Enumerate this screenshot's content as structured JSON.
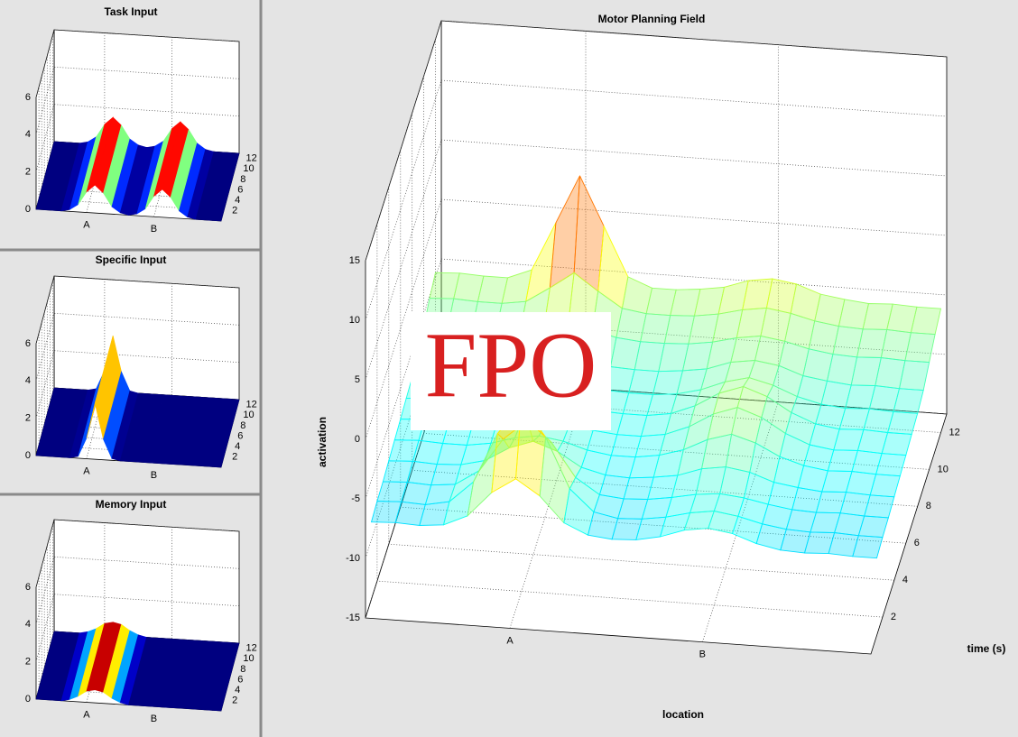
{
  "chart_data": [
    {
      "type": "surface",
      "title": "Task Input",
      "x": [
        0,
        0.5,
        1,
        1.5,
        2,
        2.5,
        3,
        3.5,
        4,
        4.5,
        5,
        5.5,
        6,
        6.5,
        7,
        7.5,
        8,
        8.5,
        9,
        9.5,
        10,
        10.5,
        11
      ],
      "values": [
        0,
        0,
        0,
        0,
        0.1,
        0.4,
        1.1,
        1.5,
        1.1,
        0.4,
        0.1,
        0,
        0.1,
        0.4,
        1.1,
        1.5,
        1.1,
        0.4,
        0.1,
        0,
        0,
        0,
        0
      ],
      "xlim": [
        0,
        11
      ],
      "xticks": [
        {
          "value": 3,
          "label": "A"
        },
        {
          "value": 7,
          "label": "B"
        }
      ],
      "ylim": [
        0,
        13
      ],
      "yticks": [
        2,
        4,
        6,
        8,
        10,
        12
      ],
      "zlim": [
        0,
        6
      ],
      "zticks": [
        0,
        2,
        4,
        6
      ],
      "grid": true
    },
    {
      "type": "surface",
      "title": "Specific Input",
      "x": [
        0,
        0.5,
        1,
        1.5,
        2,
        2.5,
        3,
        3.5,
        4,
        4.5,
        5,
        5.5,
        6,
        6.5,
        7,
        7.5,
        8,
        8.5,
        9,
        9.5,
        10,
        10.5,
        11
      ],
      "values": [
        0,
        0,
        0,
        0,
        0,
        0.1,
        1.1,
        3,
        1.1,
        0.1,
        0,
        0,
        0,
        0,
        0,
        0,
        0,
        0,
        0,
        0,
        0,
        0,
        0
      ],
      "xlim": [
        0,
        11
      ],
      "xticks": [
        {
          "value": 3,
          "label": "A"
        },
        {
          "value": 7,
          "label": "B"
        }
      ],
      "ylim": [
        0,
        13
      ],
      "yticks": [
        2,
        4,
        6,
        8,
        10,
        12
      ],
      "zlim": [
        0,
        6
      ],
      "zticks": [
        0,
        2,
        4,
        6
      ],
      "grid": true
    },
    {
      "type": "surface",
      "title": "Memory Input",
      "x": [
        0,
        0.5,
        1,
        1.5,
        2,
        2.5,
        3,
        3.5,
        4,
        4.5,
        5,
        5.5,
        6,
        6.5,
        7,
        7.5,
        8,
        8.5,
        9,
        9.5,
        10,
        10.5,
        11
      ],
      "values": [
        0,
        0,
        0,
        0,
        0.1,
        0.3,
        0.6,
        0.7,
        0.6,
        0.3,
        0.1,
        0,
        0,
        0,
        0,
        0,
        0,
        0,
        0,
        0,
        0,
        0,
        0
      ],
      "xlim": [
        0,
        11
      ],
      "xticks": [
        {
          "value": 3,
          "label": "A"
        },
        {
          "value": 7,
          "label": "B"
        }
      ],
      "ylim": [
        0,
        13
      ],
      "yticks": [
        2,
        4,
        6,
        8,
        10,
        12
      ],
      "zlim": [
        0,
        6
      ],
      "zticks": [
        0,
        2,
        4,
        6
      ],
      "grid": true
    },
    {
      "type": "mesh",
      "title": "Motor Planning Field",
      "xlabel": "location",
      "ylabel": "time (s)",
      "zlabel": "activation",
      "annotation": "FPO",
      "x": [
        0,
        0.5,
        1,
        1.5,
        2,
        2.5,
        3,
        3.5,
        4,
        4.5,
        5,
        5.5,
        6,
        6.5,
        7,
        7.5,
        8,
        8.5,
        9,
        9.5,
        10,
        10.5
      ],
      "y": [
        1,
        2,
        3,
        4,
        5,
        6,
        7,
        8,
        9,
        10,
        11,
        12
      ],
      "values": [
        [
          -8.5,
          -8.4,
          -8.5,
          -8.3,
          -7.4,
          -5.3,
          -4.0,
          -5.3,
          -7.4,
          -8.3,
          -8.5,
          -8.4,
          -8.0,
          -7.3,
          -7.0,
          -7.3,
          -8.0,
          -8.4,
          -8.5,
          -8.4,
          -8.5,
          -8.5
        ],
        [
          -8.3,
          -8.2,
          -8.3,
          -7.9,
          -6.1,
          -1.9,
          0.7,
          -1.9,
          -6.1,
          -7.9,
          -8.3,
          -8.2,
          -7.9,
          -7.4,
          -7.1,
          -7.4,
          -7.9,
          -8.2,
          -8.3,
          -8.2,
          -8.3,
          -8.3
        ],
        [
          -8.2,
          -8.1,
          -8.2,
          -8.0,
          -6.7,
          -3.9,
          -2.2,
          -3.9,
          -6.7,
          -8.0,
          -8.2,
          -8.1,
          -7.8,
          -7.4,
          -7.2,
          -7.4,
          -7.8,
          -8.1,
          -8.2,
          -8.1,
          -8.2,
          -8.2
        ],
        [
          -8.0,
          -7.9,
          -8.0,
          -7.9,
          -7.4,
          -6.2,
          -5.5,
          -6.2,
          -7.4,
          -7.9,
          -8.0,
          -7.8,
          -7.5,
          -6.8,
          -6.5,
          -6.8,
          -7.5,
          -7.8,
          -8.0,
          -7.9,
          -8.0,
          -8.0
        ],
        [
          -7.8,
          -7.7,
          -7.8,
          -7.8,
          -7.5,
          -6.9,
          -6.6,
          -6.9,
          -7.5,
          -7.8,
          -7.8,
          -7.5,
          -6.9,
          -5.9,
          -5.3,
          -5.9,
          -6.9,
          -7.5,
          -7.8,
          -7.7,
          -7.8,
          -7.8
        ],
        [
          -7.6,
          -7.5,
          -7.6,
          -7.6,
          -7.4,
          -7.2,
          -7.0,
          -7.2,
          -7.4,
          -7.6,
          -7.6,
          -7.3,
          -6.5,
          -5.3,
          -4.6,
          -5.3,
          -6.5,
          -7.3,
          -7.6,
          -7.5,
          -7.6,
          -7.6
        ],
        [
          -7.4,
          -7.3,
          -7.4,
          -7.4,
          -7.3,
          -7.1,
          -7.0,
          -7.1,
          -7.3,
          -7.4,
          -7.4,
          -7.1,
          -6.3,
          -5.1,
          -4.4,
          -5.1,
          -6.3,
          -7.1,
          -7.4,
          -7.3,
          -7.4,
          -7.4
        ],
        [
          -7.2,
          -7.1,
          -7.2,
          -7.2,
          -7.1,
          -6.9,
          -6.8,
          -6.9,
          -7.1,
          -7.2,
          -7.2,
          -7.0,
          -6.5,
          -5.7,
          -5.2,
          -5.7,
          -6.5,
          -7.0,
          -7.2,
          -7.1,
          -7.2,
          -7.2
        ],
        [
          -6.8,
          -6.7,
          -6.8,
          -6.8,
          -6.7,
          -6.4,
          -6.3,
          -6.4,
          -6.7,
          -6.8,
          -6.8,
          -6.6,
          -6.3,
          -5.6,
          -5.3,
          -5.6,
          -6.3,
          -6.6,
          -6.8,
          -6.7,
          -6.8,
          -6.8
        ],
        [
          -6.0,
          -5.9,
          -6.0,
          -6.0,
          -5.8,
          -5.3,
          -5.0,
          -5.3,
          -5.8,
          -6.0,
          -6.0,
          -5.9,
          -5.6,
          -5.1,
          -4.8,
          -5.1,
          -5.6,
          -5.9,
          -6.0,
          -5.9,
          -6.0,
          -6.0
        ],
        [
          -5.2,
          -5.1,
          -5.2,
          -5.2,
          -4.9,
          -3.6,
          -2.2,
          -3.6,
          -4.9,
          -5.2,
          -5.2,
          -5.1,
          -4.8,
          -4.3,
          -4.0,
          -4.3,
          -4.8,
          -5.1,
          -5.2,
          -5.1,
          -5.2,
          -5.2
        ],
        [
          -4.6,
          -4.5,
          -4.6,
          -4.6,
          -3.8,
          0.3,
          4.4,
          0.3,
          -3.8,
          -4.6,
          -4.6,
          -4.4,
          -4.1,
          -3.4,
          -3.1,
          -3.4,
          -4.1,
          -4.4,
          -4.6,
          -4.5,
          -4.6,
          -4.6
        ]
      ],
      "xlim": [
        0,
        10.5
      ],
      "xticks": [
        {
          "value": 3,
          "label": "A"
        },
        {
          "value": 7,
          "label": "B"
        }
      ],
      "ylim": [
        0,
        13
      ],
      "yticks": [
        2,
        4,
        6,
        8,
        10,
        12
      ],
      "zlim": [
        -15,
        15
      ],
      "zticks": [
        -15,
        -10,
        -5,
        0,
        5,
        10,
        15
      ],
      "grid": true
    }
  ]
}
